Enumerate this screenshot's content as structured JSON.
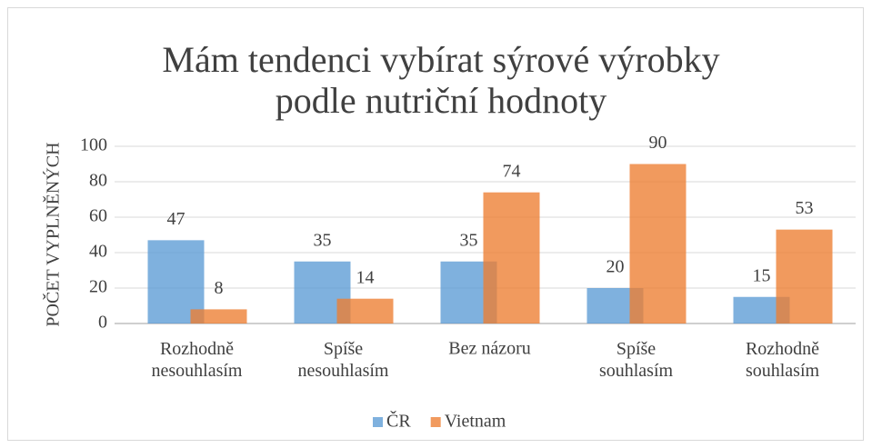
{
  "chart_data": {
    "type": "bar",
    "title": "Mám tendenci vybírat sýrové výrobky\npodle nutriční hodnoty",
    "y_label": "POČET VYPLNĚNÝCH",
    "categories": [
      "Rozhodně\nnesouhlasím",
      "Spíše\nnesouhlasím",
      "Bez názoru",
      "Spíše\nsouhlasím",
      "Rozhodně\nsouhlasím"
    ],
    "series": [
      {
        "name": "ČR",
        "color": "#5b9bd5",
        "values": [
          47,
          35,
          35,
          20,
          15
        ]
      },
      {
        "name": "Vietnam",
        "color": "#ed7d31",
        "values": [
          8,
          14,
          74,
          90,
          53
        ]
      }
    ],
    "ylim": [
      0,
      100
    ],
    "yticks": [
      0,
      20,
      40,
      60,
      80,
      100
    ],
    "grid": true,
    "legend": "bottom"
  }
}
